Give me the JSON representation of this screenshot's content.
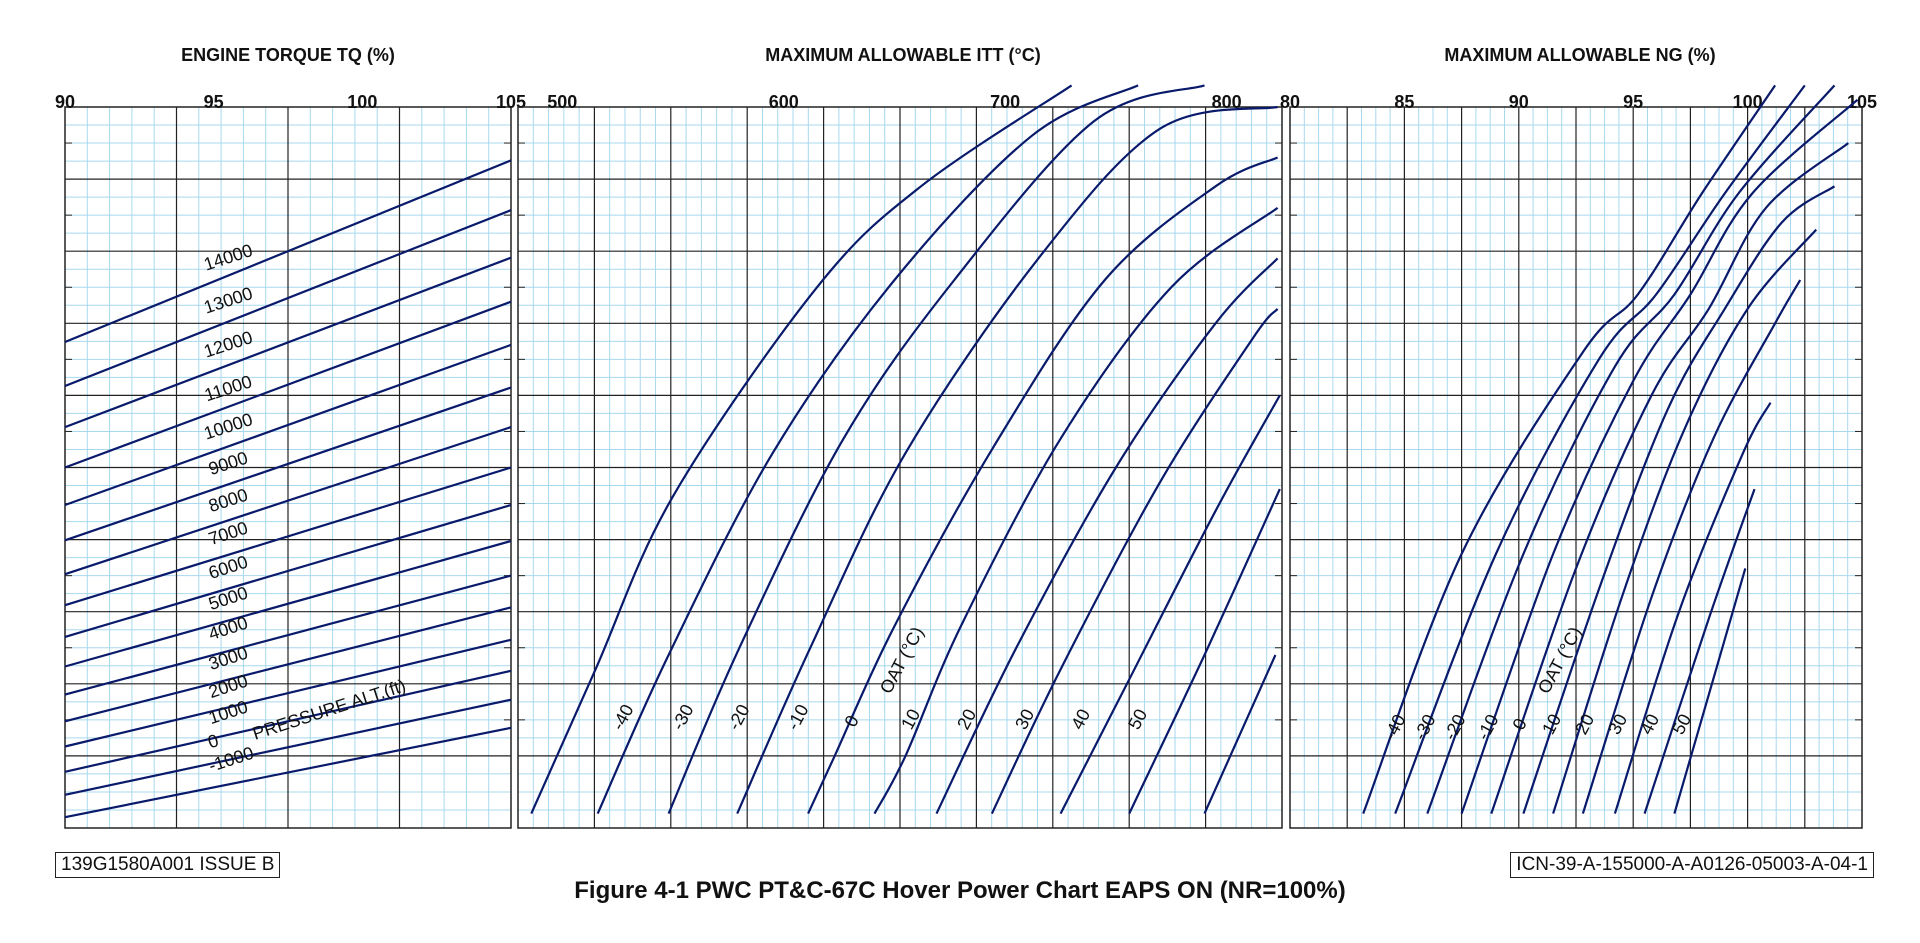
{
  "doc_ref_left": "139G1580A001 ISSUE B",
  "doc_ref_right": "ICN-39-A-155000-A-A0126-05003-A-04-1",
  "caption": "Figure 4-1  PWC PT&C-67C Hover Power Chart EAPS ON (NR=100%)",
  "colors": {
    "curve": "#0a1a6b",
    "minor_grid": "#a8d8ee",
    "major_grid": "#222222"
  },
  "chart_data": [
    {
      "type": "line",
      "title": "ENGINE TORQUE TQ (%)",
      "xlim": [
        90,
        105
      ],
      "x_ticks": [
        "90",
        "95",
        "100",
        "105"
      ],
      "ylim": [
        0,
        10
      ],
      "family_label": "PRESSURE ALT.(ft)",
      "series": [
        {
          "name": "14000",
          "x": [
            90,
            105
          ],
          "y": [
            6.74,
            9.26
          ]
        },
        {
          "name": "13000",
          "x": [
            90,
            105
          ],
          "y": [
            6.13,
            8.57
          ]
        },
        {
          "name": "12000",
          "x": [
            90,
            105
          ],
          "y": [
            5.56,
            7.91
          ]
        },
        {
          "name": "11000",
          "x": [
            90,
            105
          ],
          "y": [
            5.0,
            7.3
          ]
        },
        {
          "name": "10000",
          "x": [
            90,
            105
          ],
          "y": [
            4.48,
            6.7
          ]
        },
        {
          "name": "9000",
          "x": [
            90,
            105
          ],
          "y": [
            3.99,
            6.11
          ]
        },
        {
          "name": "8000",
          "x": [
            90,
            105
          ],
          "y": [
            3.52,
            5.56
          ]
        },
        {
          "name": "7000",
          "x": [
            90,
            105
          ],
          "y": [
            3.09,
            5.0
          ]
        },
        {
          "name": "6000",
          "x": [
            90,
            105
          ],
          "y": [
            2.65,
            4.48
          ]
        },
        {
          "name": "5000",
          "x": [
            90,
            105
          ],
          "y": [
            2.24,
            3.98
          ]
        },
        {
          "name": "4000",
          "x": [
            90,
            105
          ],
          "y": [
            1.85,
            3.5
          ]
        },
        {
          "name": "3000",
          "x": [
            90,
            105
          ],
          "y": [
            1.48,
            3.06
          ]
        },
        {
          "name": "2000",
          "x": [
            90,
            105
          ],
          "y": [
            1.13,
            2.61
          ]
        },
        {
          "name": "1000",
          "x": [
            90,
            105
          ],
          "y": [
            0.78,
            2.18
          ]
        },
        {
          "name": "0",
          "x": [
            90,
            105
          ],
          "y": [
            0.46,
            1.78
          ]
        },
        {
          "name": "-1000",
          "x": [
            90,
            105
          ],
          "y": [
            0.15,
            1.39
          ]
        }
      ]
    },
    {
      "type": "line",
      "title": "MAXIMUM ALLOWABLE ITT (°C)",
      "xlim": [
        480,
        825
      ],
      "x_ticks": [
        "500",
        "600",
        "700",
        "800"
      ],
      "ylim": [
        0,
        10
      ],
      "family_label": "OAT (°C)",
      "series": [
        {
          "name": "-40",
          "x": [
            486,
            515,
            550,
            615,
            662,
            730
          ],
          "y": [
            0.2,
            2.2,
            4.6,
            7.5,
            8.9,
            10.3
          ]
        },
        {
          "name": "-30",
          "x": [
            516,
            548,
            595,
            650,
            712,
            760
          ],
          "y": [
            0.2,
            2.4,
            5.2,
            7.6,
            9.6,
            10.3
          ]
        },
        {
          "name": "-20",
          "x": [
            548,
            580,
            627,
            677,
            740,
            790
          ],
          "y": [
            0.2,
            2.5,
            5.4,
            7.6,
            9.8,
            10.3
          ]
        },
        {
          "name": "-10",
          "x": [
            579,
            612,
            655,
            715,
            770,
            823
          ],
          "y": [
            0.2,
            2.5,
            5.2,
            7.9,
            9.7,
            10.0
          ]
        },
        {
          "name": "0",
          "x": [
            611,
            623,
            650,
            695,
            745,
            795,
            823
          ],
          "y": [
            0.2,
            1.0,
            2.8,
            5.3,
            7.6,
            8.9,
            9.3
          ]
        },
        {
          "name": "10",
          "x": [
            641,
            655,
            680,
            725,
            775,
            823
          ],
          "y": [
            0.2,
            1.0,
            2.8,
            5.4,
            7.5,
            8.6
          ]
        },
        {
          "name": "20",
          "x": [
            669,
            705,
            750,
            795,
            823
          ],
          "y": [
            0.2,
            2.5,
            5.0,
            7.0,
            7.9
          ]
        },
        {
          "name": "30",
          "x": [
            694,
            725,
            770,
            812,
            823
          ],
          "y": [
            0.2,
            2.2,
            4.8,
            6.8,
            7.2
          ]
        },
        {
          "name": "40",
          "x": [
            725,
            755,
            795,
            824
          ],
          "y": [
            0.2,
            2.0,
            4.4,
            6.0
          ]
        },
        {
          "name": "50",
          "x": [
            756,
            790,
            824
          ],
          "y": [
            0.2,
            2.4,
            4.7
          ]
        },
        {
          "name": "",
          "x": [
            790,
            822
          ],
          "y": [
            0.2,
            2.4
          ]
        }
      ]
    },
    {
      "type": "line",
      "title": "MAXIMUM ALLOWABLE NG (%)",
      "xlim": [
        80,
        105
      ],
      "x_ticks": [
        "80",
        "85",
        "90",
        "95",
        "100",
        "105"
      ],
      "ylim": [
        0,
        10
      ],
      "family_label": "OAT (°C)",
      "series": [
        {
          "name": "-40",
          "x": [
            83.2,
            87.5,
            92.8,
            95.2,
            98.0,
            101.2
          ],
          "y": [
            0.2,
            3.8,
            6.6,
            7.4,
            8.8,
            10.3
          ]
        },
        {
          "name": "-30",
          "x": [
            84.6,
            89.0,
            93.5,
            96.0,
            99.0,
            102.5
          ],
          "y": [
            0.2,
            3.8,
            6.5,
            7.4,
            8.8,
            10.3
          ]
        },
        {
          "name": "-20",
          "x": [
            86.0,
            90.2,
            94.2,
            96.8,
            99.6,
            103.8
          ],
          "y": [
            0.2,
            3.8,
            6.4,
            7.4,
            8.8,
            10.3
          ]
        },
        {
          "name": "-10",
          "x": [
            87.5,
            91.5,
            95.0,
            97.5,
            100.2,
            104.8
          ],
          "y": [
            0.2,
            3.8,
            6.2,
            7.4,
            8.8,
            10.1
          ]
        },
        {
          "name": "0",
          "x": [
            88.8,
            92.5,
            95.8,
            98.3,
            100.8,
            104.4
          ],
          "y": [
            0.2,
            3.6,
            6.0,
            7.2,
            8.6,
            9.5
          ]
        },
        {
          "name": "10",
          "x": [
            90.2,
            93.6,
            96.5,
            99.0,
            101.5,
            103.8
          ],
          "y": [
            0.2,
            3.4,
            5.8,
            7.2,
            8.4,
            8.9
          ]
        },
        {
          "name": "20",
          "x": [
            91.5,
            94.5,
            97.2,
            100.0,
            103.0
          ],
          "y": [
            0.2,
            3.2,
            5.5,
            7.2,
            8.3
          ]
        },
        {
          "name": "30",
          "x": [
            92.8,
            95.8,
            98.5,
            101.2,
            102.3
          ],
          "y": [
            0.2,
            3.2,
            5.4,
            7.0,
            7.6
          ]
        },
        {
          "name": "40",
          "x": [
            94.2,
            97.0,
            99.8,
            101.0
          ],
          "y": [
            0.2,
            3.0,
            5.2,
            5.9
          ]
        },
        {
          "name": "50",
          "x": [
            95.5,
            98.3,
            100.3
          ],
          "y": [
            0.2,
            2.9,
            4.7
          ]
        },
        {
          "name": "",
          "x": [
            96.8,
            99.9
          ],
          "y": [
            0.2,
            3.6
          ]
        }
      ]
    }
  ]
}
